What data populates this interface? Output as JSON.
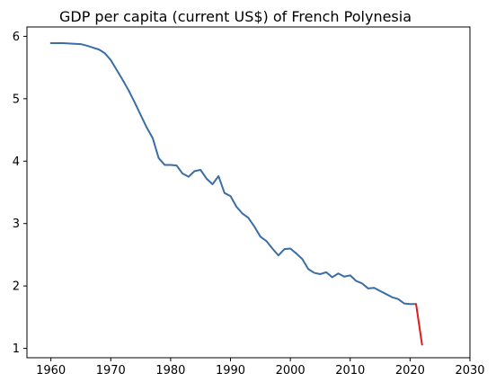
{
  "chart_data": {
    "type": "line",
    "title": "GDP per capita (current US$) of French Polynesia",
    "xlabel": "",
    "ylabel": "",
    "xlim": [
      1956,
      2030
    ],
    "ylim": [
      0.85,
      6.15
    ],
    "x_ticks": [
      1960,
      1970,
      1980,
      1990,
      2000,
      2010,
      2020,
      2030
    ],
    "y_ticks": [
      1,
      2,
      3,
      4,
      5,
      6
    ],
    "x_tick_labels": [
      "1960",
      "1970",
      "1980",
      "1990",
      "2000",
      "2010",
      "2020",
      "2030"
    ],
    "y_tick_labels": [
      "1",
      "2",
      "3",
      "4",
      "5",
      "6"
    ],
    "grid": false,
    "series": [
      {
        "color": "#3a6ea5",
        "points": [
          [
            1960,
            5.89
          ],
          [
            1961,
            5.89
          ],
          [
            1962,
            5.89
          ],
          [
            1963,
            5.885
          ],
          [
            1964,
            5.88
          ],
          [
            1965,
            5.875
          ],
          [
            1966,
            5.85
          ],
          [
            1967,
            5.82
          ],
          [
            1968,
            5.79
          ],
          [
            1969,
            5.73
          ],
          [
            1970,
            5.62
          ],
          [
            1971,
            5.46
          ],
          [
            1972,
            5.3
          ],
          [
            1973,
            5.13
          ],
          [
            1974,
            4.94
          ],
          [
            1975,
            4.74
          ],
          [
            1976,
            4.54
          ],
          [
            1977,
            4.37
          ],
          [
            1978,
            4.05
          ],
          [
            1979,
            3.94
          ],
          [
            1980,
            3.94
          ],
          [
            1981,
            3.93
          ],
          [
            1982,
            3.8
          ],
          [
            1983,
            3.75
          ],
          [
            1984,
            3.84
          ],
          [
            1985,
            3.86
          ],
          [
            1986,
            3.72
          ],
          [
            1987,
            3.63
          ],
          [
            1988,
            3.76
          ],
          [
            1989,
            3.49
          ],
          [
            1990,
            3.44
          ],
          [
            1991,
            3.27
          ],
          [
            1992,
            3.16
          ],
          [
            1993,
            3.09
          ],
          [
            1994,
            2.95
          ],
          [
            1995,
            2.79
          ],
          [
            1996,
            2.72
          ],
          [
            1997,
            2.6
          ],
          [
            1998,
            2.49
          ],
          [
            1999,
            2.59
          ],
          [
            2000,
            2.6
          ],
          [
            2001,
            2.52
          ],
          [
            2002,
            2.43
          ],
          [
            2003,
            2.27
          ],
          [
            2004,
            2.21
          ],
          [
            2005,
            2.19
          ],
          [
            2006,
            2.22
          ],
          [
            2007,
            2.14
          ],
          [
            2008,
            2.2
          ],
          [
            2009,
            2.15
          ],
          [
            2010,
            2.17
          ],
          [
            2011,
            2.08
          ],
          [
            2012,
            2.04
          ],
          [
            2013,
            1.96
          ],
          [
            2014,
            1.97
          ],
          [
            2015,
            1.92
          ],
          [
            2016,
            1.87
          ],
          [
            2017,
            1.82
          ],
          [
            2018,
            1.79
          ],
          [
            2019,
            1.72
          ],
          [
            2020,
            1.71
          ],
          [
            2021,
            1.71
          ]
        ]
      },
      {
        "color": "#e31a1c",
        "points": [
          [
            2021,
            1.71
          ],
          [
            2022,
            1.06
          ]
        ]
      }
    ]
  }
}
